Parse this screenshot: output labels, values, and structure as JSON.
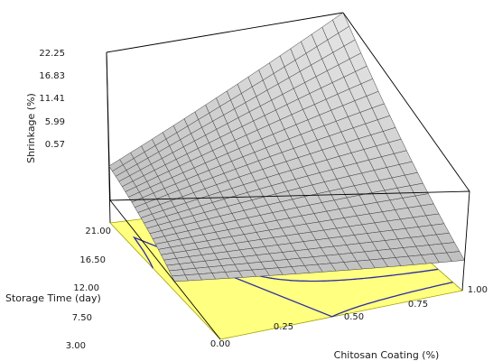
{
  "chart_data": {
    "type": "surface",
    "title": "",
    "xlabel": "Chitosan Coating  (%)",
    "ylabel": "Storage Time (day)",
    "zlabel": "Shrinkage (%)",
    "x_ticks": [
      "0.00",
      "0.25",
      "0.50",
      "0.75",
      "1.00"
    ],
    "y_ticks": [
      "3.00",
      "7.50",
      "12.00",
      "16.50",
      "21.00"
    ],
    "z_ticks": [
      "0.57",
      "5.99",
      "11.41",
      "16.83",
      "22.25"
    ],
    "xlim": [
      0,
      1
    ],
    "ylim": [
      3,
      21
    ],
    "zlim": [
      0.57,
      22.25
    ],
    "surface_corners": [
      {
        "x": 0,
        "y": 3,
        "z": 9.6
      },
      {
        "x": 1,
        "y": 3,
        "z": 7.2
      },
      {
        "x": 0,
        "y": 21,
        "z": 7.8
      },
      {
        "x": 1,
        "y": 21,
        "z": 22.25
      }
    ],
    "contour_levels": [
      6.5,
      8.5,
      10.5,
      12.5,
      14.5,
      16.5,
      18.5
    ],
    "colors": {
      "surface_fill": "#cfcfcf",
      "surface_grid": "#3c3c3c",
      "floor_fill": "#ffff80",
      "floor_edge": "#a0a000",
      "contour": "#2a2aa8",
      "frame": "#000000"
    }
  }
}
